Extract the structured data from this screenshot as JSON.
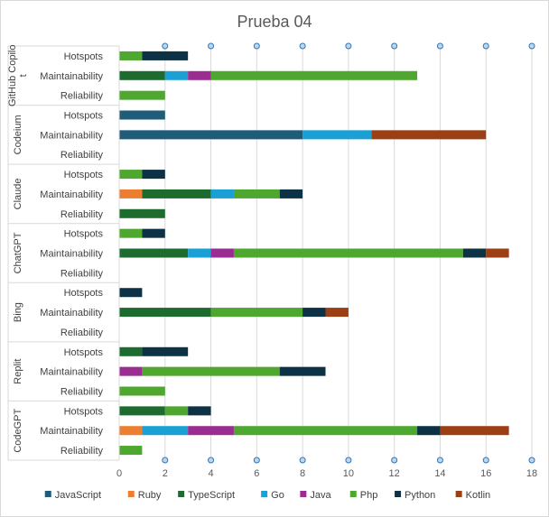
{
  "chart_data": {
    "type": "bar",
    "orientation": "horizontal",
    "stacked": true,
    "title": "Prueba 04",
    "xlim": [
      0,
      18
    ],
    "xticks": [
      "0",
      "2",
      "4",
      "6",
      "8",
      "10",
      "12",
      "14",
      "16",
      "18"
    ],
    "grid": true,
    "legend_position": "bottom",
    "groups": [
      {
        "name": "GitHub Copilot",
        "name_lines": [
          "GitHub Copilo",
          "t"
        ]
      },
      {
        "name": "Codeium",
        "name_lines": [
          "Codeium"
        ]
      },
      {
        "name": "Claude",
        "name_lines": [
          "Claude"
        ]
      },
      {
        "name": "ChatGPT",
        "name_lines": [
          "ChatGPT"
        ]
      },
      {
        "name": "Bing",
        "name_lines": [
          "Bing"
        ]
      },
      {
        "name": "Replit",
        "name_lines": [
          "Replit"
        ]
      },
      {
        "name": "CodeGPT",
        "name_lines": [
          "CodeGPT"
        ]
      }
    ],
    "subcategories": [
      "Hotspots",
      "Maintainability",
      "Reliability"
    ],
    "series": [
      {
        "name": "JavaScript",
        "color": "#1f5c7a",
        "values": [
          [
            0,
            0,
            0
          ],
          [
            2,
            8,
            0
          ],
          [
            0,
            0,
            0
          ],
          [
            0,
            0,
            0
          ],
          [
            0,
            0,
            0
          ],
          [
            0,
            0,
            0
          ],
          [
            0,
            0,
            0
          ]
        ]
      },
      {
        "name": "Ruby",
        "color": "#ed7d31",
        "values": [
          [
            0,
            0,
            0
          ],
          [
            0,
            0,
            0
          ],
          [
            0,
            1,
            0
          ],
          [
            0,
            0,
            0
          ],
          [
            0,
            0,
            0
          ],
          [
            0,
            0,
            0
          ],
          [
            0,
            1,
            0
          ]
        ]
      },
      {
        "name": "TypeScript",
        "color": "#1e6b30",
        "values": [
          [
            0,
            2,
            0
          ],
          [
            0,
            0,
            0
          ],
          [
            0,
            3,
            2
          ],
          [
            0,
            3,
            0
          ],
          [
            0,
            4,
            0
          ],
          [
            1,
            0,
            0
          ],
          [
            2,
            0,
            0
          ]
        ]
      },
      {
        "name": "Go",
        "color": "#1ba0d6",
        "values": [
          [
            0,
            1,
            0
          ],
          [
            0,
            3,
            0
          ],
          [
            0,
            1,
            0
          ],
          [
            0,
            1,
            0
          ],
          [
            0,
            0,
            0
          ],
          [
            0,
            0,
            0
          ],
          [
            0,
            2,
            0
          ]
        ]
      },
      {
        "name": "Java",
        "color": "#9b2c91",
        "values": [
          [
            0,
            1,
            0
          ],
          [
            0,
            0,
            0
          ],
          [
            0,
            0,
            0
          ],
          [
            0,
            1,
            0
          ],
          [
            0,
            0,
            0
          ],
          [
            0,
            1,
            0
          ],
          [
            0,
            2,
            0
          ]
        ]
      },
      {
        "name": "Php",
        "color": "#4ea72e",
        "values": [
          [
            1,
            9,
            2
          ],
          [
            0,
            0,
            0
          ],
          [
            1,
            2,
            0
          ],
          [
            1,
            10,
            0
          ],
          [
            0,
            4,
            0
          ],
          [
            0,
            6,
            2
          ],
          [
            1,
            8,
            1
          ]
        ]
      },
      {
        "name": "Python",
        "color": "#0d3245",
        "values": [
          [
            2,
            0,
            0
          ],
          [
            0,
            0,
            0
          ],
          [
            1,
            1,
            0
          ],
          [
            1,
            1,
            0
          ],
          [
            1,
            1,
            0
          ],
          [
            2,
            2,
            0
          ],
          [
            1,
            1,
            0
          ]
        ]
      },
      {
        "name": "Kotlin",
        "color": "#9c3f15",
        "values": [
          [
            0,
            0,
            0
          ],
          [
            0,
            5,
            0
          ],
          [
            0,
            0,
            0
          ],
          [
            0,
            1,
            0
          ],
          [
            0,
            1,
            0
          ],
          [
            0,
            0,
            0
          ],
          [
            0,
            3,
            0
          ]
        ]
      }
    ]
  }
}
